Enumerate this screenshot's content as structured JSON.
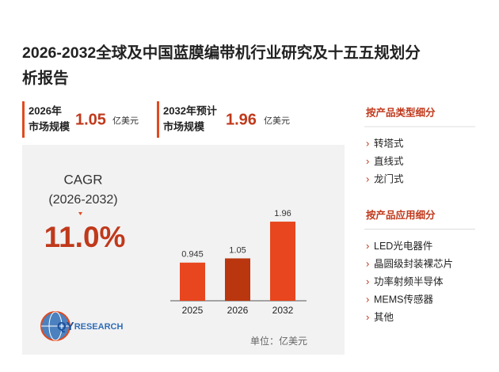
{
  "title_lines": [
    "2026-2032全球及中国蓝膜编带机行业研究及十五五规划分",
    "析报告"
  ],
  "stats": [
    {
      "label_lines": [
        "2026年",
        "市场规模"
      ],
      "value": "1.05",
      "unit": "亿美元"
    },
    {
      "label_lines": [
        "2032年预计",
        "市场规模"
      ],
      "value": "1.96",
      "unit": "亿美元"
    }
  ],
  "cagr": {
    "label": "CAGR",
    "period": "(2026-2032)",
    "value": "11.0%"
  },
  "chart_data": {
    "type": "bar",
    "categories": [
      "2025",
      "2026",
      "2032"
    ],
    "values": [
      0.945,
      1.05,
      1.96
    ],
    "colors": [
      "#e8461e",
      "#b9360f",
      "#e8461e"
    ],
    "unit_label": "单位：亿美元"
  },
  "logo": {
    "part1": "QY",
    "part2": "RESEARCH"
  },
  "sidebar": [
    {
      "heading": "按产品类型细分",
      "items": [
        "转塔式",
        "直线式",
        "龙门式"
      ]
    },
    {
      "heading": "按产品应用细分",
      "items": [
        "LED光电器件",
        "晶圆级封装裸芯片",
        "功率射频半导体",
        "MEMS传感器",
        "其他"
      ]
    }
  ]
}
